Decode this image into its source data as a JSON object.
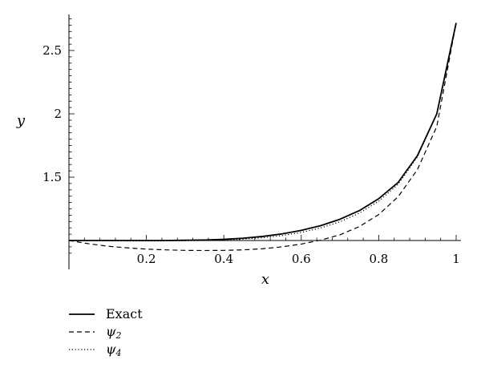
{
  "chart_data": {
    "type": "line",
    "title": "",
    "xlabel": "x",
    "ylabel": "y",
    "xlim": [
      0,
      1
    ],
    "ylim": [
      0.85,
      2.75
    ],
    "origin": [
      0,
      1
    ],
    "x_ticks": [
      {
        "value": 0.2,
        "label": "0.2"
      },
      {
        "value": 0.4,
        "label": "0.4"
      },
      {
        "value": 0.6,
        "label": "0.6"
      },
      {
        "value": 0.8,
        "label": "0.8"
      },
      {
        "value": 1.0,
        "label": "1"
      }
    ],
    "y_ticks": [
      {
        "value": 1.5,
        "label": "1.5"
      },
      {
        "value": 2.0,
        "label": "2"
      },
      {
        "value": 2.5,
        "label": "2.5"
      }
    ],
    "x": [
      0.0,
      0.05,
      0.1,
      0.15,
      0.2,
      0.25,
      0.3,
      0.35,
      0.4,
      0.45,
      0.5,
      0.55,
      0.6,
      0.65,
      0.7,
      0.75,
      0.8,
      0.85,
      0.9,
      0.95,
      1.0
    ],
    "series": [
      {
        "name": "Exact",
        "style": "solid",
        "values": [
          1.0,
          1.0,
          1.0,
          1.0,
          1.0,
          1.0,
          1.002,
          1.004,
          1.009,
          1.018,
          1.032,
          1.052,
          1.08,
          1.117,
          1.168,
          1.236,
          1.33,
          1.458,
          1.67,
          2.0,
          2.718
        ]
      },
      {
        "name": "ψ2",
        "name_symbol": "ψ",
        "name_subscript": "2",
        "style": "dashed",
        "values": [
          1.0,
          0.975,
          0.955,
          0.942,
          0.932,
          0.926,
          0.922,
          0.921,
          0.922,
          0.926,
          0.935,
          0.95,
          0.972,
          1.003,
          1.045,
          1.11,
          1.205,
          1.345,
          1.56,
          1.9,
          2.718
        ]
      },
      {
        "name": "ψ4",
        "name_symbol": "ψ",
        "name_subscript": "4",
        "style": "dotted",
        "values": [
          1.0,
          0.999,
          0.998,
          0.997,
          0.997,
          0.997,
          0.998,
          1.0,
          1.004,
          1.011,
          1.022,
          1.039,
          1.064,
          1.099,
          1.148,
          1.216,
          1.31,
          1.443,
          1.66,
          2.0,
          2.718
        ]
      }
    ],
    "legend_position": "bottom-left",
    "grid": false
  }
}
